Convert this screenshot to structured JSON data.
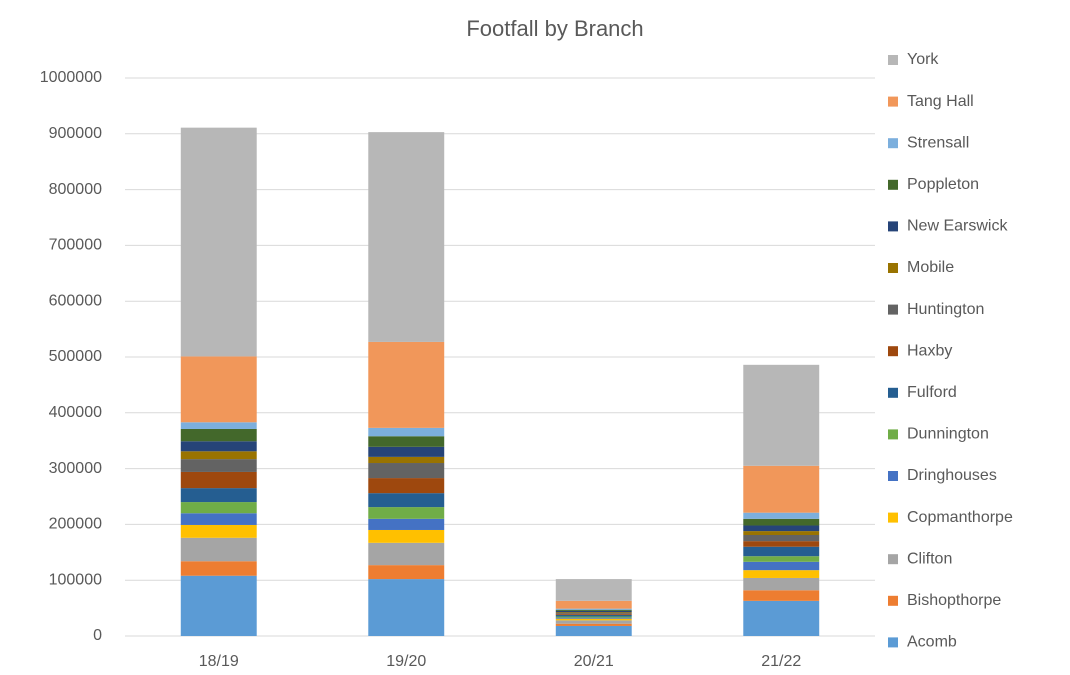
{
  "chart_data": {
    "type": "bar",
    "stacked": true,
    "title": "Footfall by Branch",
    "categories": [
      "18/19",
      "19/20",
      "20/21",
      "21/22"
    ],
    "series": [
      {
        "name": "Acomb",
        "color": "#5b9bd5",
        "values": [
          108000,
          102000,
          18000,
          63000
        ]
      },
      {
        "name": "Bishopthorpe",
        "color": "#ed7d31",
        "values": [
          26000,
          25000,
          4000,
          19000
        ]
      },
      {
        "name": "Clifton",
        "color": "#a5a5a5",
        "values": [
          42000,
          40000,
          6000,
          22000
        ]
      },
      {
        "name": "Copmanthorpe",
        "color": "#ffc000",
        "values": [
          23000,
          23000,
          3000,
          14000
        ]
      },
      {
        "name": "Dringhouses",
        "color": "#4472c4",
        "values": [
          21000,
          20000,
          2000,
          15000
        ]
      },
      {
        "name": "Dunnington",
        "color": "#70ad47",
        "values": [
          20000,
          21000,
          2000,
          10000
        ]
      },
      {
        "name": "Fulford",
        "color": "#255e91",
        "values": [
          25000,
          25000,
          3000,
          17000
        ]
      },
      {
        "name": "Haxby",
        "color": "#9e480e",
        "values": [
          29000,
          27000,
          2000,
          10000
        ]
      },
      {
        "name": "Huntington",
        "color": "#636363",
        "values": [
          23000,
          27000,
          2000,
          11000
        ]
      },
      {
        "name": "Mobile",
        "color": "#997300",
        "values": [
          14000,
          11000,
          1000,
          7000
        ]
      },
      {
        "name": "New Earswick",
        "color": "#264478",
        "values": [
          18000,
          18000,
          2000,
          10000
        ]
      },
      {
        "name": "Poppleton",
        "color": "#43682b",
        "values": [
          22000,
          19000,
          2000,
          12000
        ]
      },
      {
        "name": "Strensall",
        "color": "#7cafdd",
        "values": [
          12000,
          15000,
          2000,
          11000
        ]
      },
      {
        "name": "Tang Hall",
        "color": "#f1975a",
        "values": [
          118000,
          154000,
          14000,
          84000
        ]
      },
      {
        "name": "York",
        "color": "#b7b7b7",
        "values": [
          410000,
          376000,
          39000,
          181000
        ]
      }
    ],
    "ylim": [
      0,
      1000000
    ],
    "yticks": [
      0,
      100000,
      200000,
      300000,
      400000,
      500000,
      600000,
      700000,
      800000,
      900000,
      1000000
    ],
    "grid": true,
    "legend": "right"
  }
}
